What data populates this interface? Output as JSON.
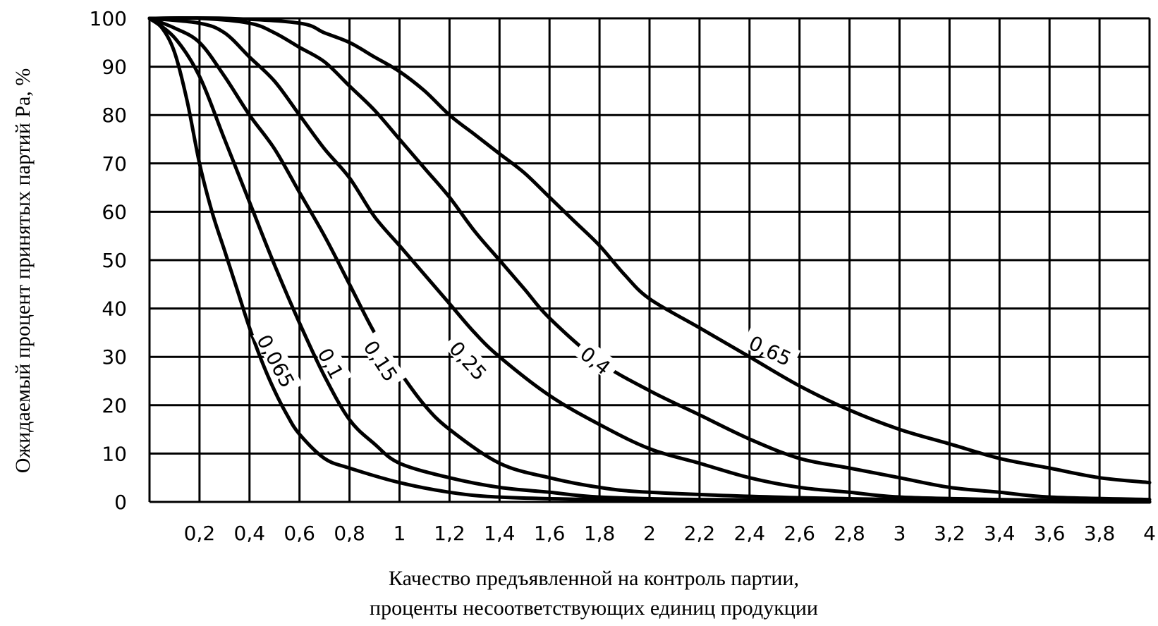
{
  "chart_data": {
    "type": "line",
    "title": "",
    "xlabel_lines": [
      "Качество предъявленной на контроль партии,",
      "проценты несоответствующих единиц продукции"
    ],
    "ylabel": "Ожидаемый процент принятых партий Pa, %",
    "xlim": [
      0,
      4
    ],
    "ylim": [
      0,
      100
    ],
    "x_ticks": [
      0.2,
      0.4,
      0.6,
      0.8,
      1,
      1.2,
      1.4,
      1.6,
      1.8,
      2,
      2.2,
      2.4,
      2.6,
      2.8,
      3,
      3.2,
      3.4,
      3.6,
      3.8,
      4
    ],
    "x_tick_labels": [
      "0,2",
      "0,4",
      "0,6",
      "0,8",
      "1",
      "1,2",
      "1,4",
      "1,6",
      "1,8",
      "2",
      "2,2",
      "2,4",
      "2,6",
      "2,8",
      "3",
      "3,2",
      "3,4",
      "3,6",
      "3,8",
      "4"
    ],
    "y_ticks": [
      0,
      10,
      20,
      30,
      40,
      50,
      60,
      70,
      80,
      90,
      100
    ],
    "y_tick_labels": [
      "0",
      "10",
      "20",
      "30",
      "40",
      "50",
      "60",
      "70",
      "80",
      "90",
      "100"
    ],
    "grid": true,
    "series": [
      {
        "name": "0,065",
        "label_x": 0.5,
        "label_y": 29,
        "label_angle": 62,
        "points": [
          [
            0,
            100
          ],
          [
            0.05,
            98
          ],
          [
            0.1,
            93
          ],
          [
            0.15,
            83
          ],
          [
            0.2,
            70
          ],
          [
            0.25,
            60
          ],
          [
            0.3,
            52
          ],
          [
            0.35,
            44
          ],
          [
            0.4,
            36
          ],
          [
            0.45,
            29
          ],
          [
            0.5,
            23
          ],
          [
            0.55,
            18
          ],
          [
            0.6,
            14
          ],
          [
            0.7,
            9
          ],
          [
            0.8,
            7
          ],
          [
            1,
            4
          ],
          [
            1.2,
            2
          ],
          [
            1.4,
            1
          ],
          [
            1.8,
            0.5
          ],
          [
            2.5,
            0.2
          ],
          [
            4,
            0
          ]
        ]
      },
      {
        "name": "0,1",
        "label_x": 0.72,
        "label_y": 28.5,
        "label_angle": 62,
        "points": [
          [
            0,
            100
          ],
          [
            0.1,
            96
          ],
          [
            0.2,
            88
          ],
          [
            0.3,
            75
          ],
          [
            0.4,
            62
          ],
          [
            0.5,
            49
          ],
          [
            0.6,
            37
          ],
          [
            0.7,
            26
          ],
          [
            0.8,
            17
          ],
          [
            0.9,
            12
          ],
          [
            1,
            8
          ],
          [
            1.2,
            5
          ],
          [
            1.4,
            3
          ],
          [
            1.6,
            2
          ],
          [
            1.8,
            1
          ],
          [
            2.2,
            0.5
          ],
          [
            3,
            0.2
          ],
          [
            4,
            0
          ]
        ]
      },
      {
        "name": "0,15",
        "label_x": 0.92,
        "label_y": 29,
        "label_angle": 57,
        "points": [
          [
            0,
            100
          ],
          [
            0.1,
            98
          ],
          [
            0.2,
            95
          ],
          [
            0.3,
            88
          ],
          [
            0.4,
            80
          ],
          [
            0.5,
            73
          ],
          [
            0.6,
            64
          ],
          [
            0.7,
            55
          ],
          [
            0.8,
            45
          ],
          [
            0.9,
            35
          ],
          [
            1,
            27
          ],
          [
            1.1,
            20
          ],
          [
            1.2,
            15
          ],
          [
            1.4,
            8
          ],
          [
            1.6,
            5
          ],
          [
            1.8,
            3
          ],
          [
            2,
            2
          ],
          [
            2.5,
            1
          ],
          [
            3,
            0.5
          ],
          [
            3.5,
            0.2
          ],
          [
            4,
            0
          ]
        ]
      },
      {
        "name": "0,25",
        "label_x": 1.27,
        "label_y": 29,
        "label_angle": 48,
        "points": [
          [
            0,
            100
          ],
          [
            0.2,
            99
          ],
          [
            0.3,
            97
          ],
          [
            0.4,
            92
          ],
          [
            0.5,
            87
          ],
          [
            0.6,
            80
          ],
          [
            0.7,
            73
          ],
          [
            0.8,
            67
          ],
          [
            0.9,
            59
          ],
          [
            1,
            53
          ],
          [
            1.1,
            47
          ],
          [
            1.2,
            41
          ],
          [
            1.3,
            35
          ],
          [
            1.4,
            30
          ],
          [
            1.6,
            22
          ],
          [
            1.8,
            16
          ],
          [
            2,
            11
          ],
          [
            2.2,
            8
          ],
          [
            2.4,
            5
          ],
          [
            2.6,
            3
          ],
          [
            2.8,
            2
          ],
          [
            3,
            1
          ],
          [
            3.4,
            0.5
          ],
          [
            4,
            0
          ]
        ]
      },
      {
        "name": "0,4",
        "label_x": 1.78,
        "label_y": 29,
        "label_angle": 38,
        "points": [
          [
            0,
            100
          ],
          [
            0.2,
            100
          ],
          [
            0.4,
            99
          ],
          [
            0.5,
            97
          ],
          [
            0.6,
            94
          ],
          [
            0.7,
            91
          ],
          [
            0.8,
            86
          ],
          [
            0.9,
            81
          ],
          [
            1,
            75
          ],
          [
            1.1,
            69
          ],
          [
            1.2,
            63
          ],
          [
            1.3,
            56
          ],
          [
            1.4,
            50
          ],
          [
            1.5,
            44
          ],
          [
            1.6,
            38
          ],
          [
            1.8,
            29
          ],
          [
            2,
            23
          ],
          [
            2.2,
            18
          ],
          [
            2.4,
            13
          ],
          [
            2.6,
            9
          ],
          [
            2.8,
            7
          ],
          [
            3,
            5
          ],
          [
            3.2,
            3
          ],
          [
            3.4,
            2
          ],
          [
            3.6,
            1
          ],
          [
            4,
            0.5
          ]
        ]
      },
      {
        "name": "0,65",
        "label_x": 2.48,
        "label_y": 31,
        "label_angle": 25,
        "points": [
          [
            0,
            100
          ],
          [
            0.3,
            100
          ],
          [
            0.6,
            99
          ],
          [
            0.7,
            97
          ],
          [
            0.8,
            95
          ],
          [
            0.9,
            92
          ],
          [
            1,
            89
          ],
          [
            1.1,
            85
          ],
          [
            1.2,
            80
          ],
          [
            1.3,
            76
          ],
          [
            1.4,
            72
          ],
          [
            1.5,
            68
          ],
          [
            1.6,
            63
          ],
          [
            1.7,
            58
          ],
          [
            1.8,
            53
          ],
          [
            1.9,
            47
          ],
          [
            2,
            42
          ],
          [
            2.2,
            36
          ],
          [
            2.4,
            30
          ],
          [
            2.6,
            24
          ],
          [
            2.8,
            19
          ],
          [
            3,
            15
          ],
          [
            3.2,
            12
          ],
          [
            3.4,
            9
          ],
          [
            3.6,
            7
          ],
          [
            3.8,
            5
          ],
          [
            4,
            4
          ]
        ]
      }
    ]
  }
}
